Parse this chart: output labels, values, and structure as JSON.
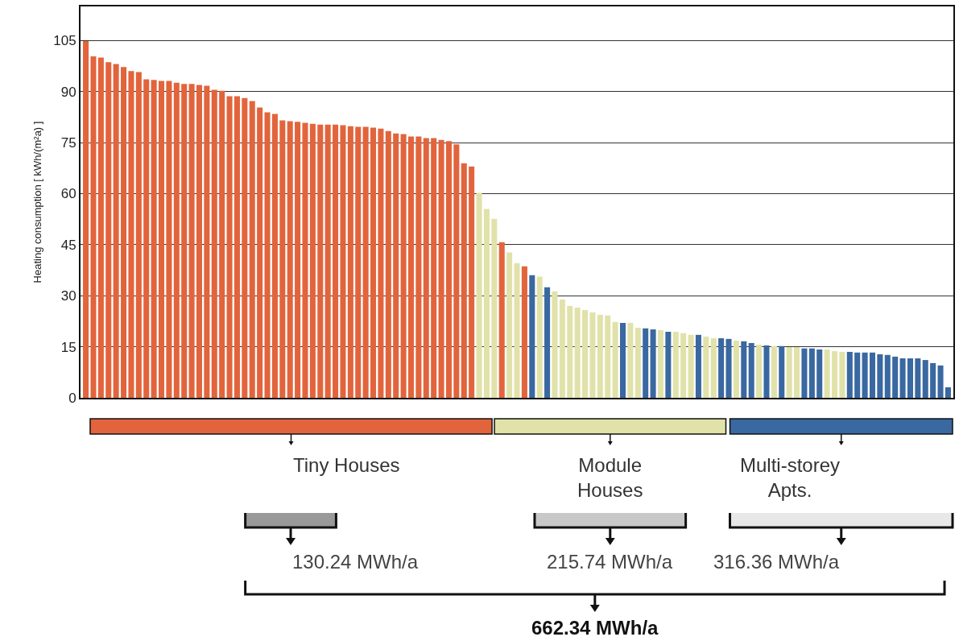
{
  "chart_data": {
    "type": "bar",
    "ylabel": "Heating consumption [ kWh/(m²a) ]",
    "categories": [
      null,
      null,
      null,
      null,
      null,
      null,
      null,
      null,
      null,
      null,
      null,
      null,
      null,
      null,
      null,
      null,
      null,
      null,
      null,
      null,
      null,
      null,
      null,
      null,
      null,
      null,
      null,
      null,
      null,
      null,
      null,
      null,
      null,
      null,
      null,
      null,
      null,
      null,
      null,
      null,
      null,
      null,
      null,
      null,
      null,
      null,
      null,
      null,
      null,
      null,
      null,
      null,
      null,
      null,
      null,
      null,
      null,
      null,
      null,
      null,
      null,
      null,
      null,
      null,
      null,
      null,
      null,
      null,
      null,
      null,
      null,
      null,
      null,
      null,
      null,
      null,
      null,
      null,
      null,
      null,
      null,
      null,
      null,
      null,
      null,
      null,
      null,
      null,
      null,
      null,
      null,
      null,
      null,
      null,
      null,
      null,
      null,
      null,
      null,
      null,
      null,
      null,
      null,
      null,
      null,
      null,
      null,
      null,
      null,
      null,
      null,
      null,
      null,
      null,
      null
    ],
    "series": [
      {
        "name": "Tiny Houses",
        "color": "#e2643c",
        "values": [
          104.8,
          100.3,
          100.0,
          98.6,
          98.1,
          97.2,
          96.0,
          95.7,
          93.6,
          93.4,
          93.1,
          93.1,
          92.6,
          92.2,
          92.2,
          91.9,
          91.7,
          90.5,
          90.2,
          88.6,
          88.6,
          88.1,
          87.2,
          85.3,
          83.9,
          83.4,
          81.5,
          81.3,
          81.1,
          80.8,
          80.5,
          80.3,
          80.3,
          80.3,
          80.1,
          79.8,
          79.6,
          79.6,
          79.4,
          79.1,
          78.4,
          77.7,
          77.5,
          76.8,
          76.8,
          76.3,
          76.3,
          75.8,
          75.4,
          74.5,
          68.9,
          68.0,
          null,
          null,
          null,
          45.7,
          null,
          null,
          38.6,
          null,
          null,
          null,
          null,
          null,
          null,
          null,
          null,
          null,
          null,
          null,
          null,
          null,
          null,
          null,
          null,
          null,
          null,
          null,
          null,
          null,
          null,
          null,
          null,
          null,
          null,
          null,
          null,
          null,
          null,
          null,
          null,
          null,
          null,
          null,
          null,
          null,
          null,
          null,
          null,
          null,
          null,
          null,
          null,
          null,
          null,
          null,
          null,
          null,
          null,
          null,
          null,
          null,
          null,
          null,
          null
        ]
      },
      {
        "name": "Module\nHouses",
        "color": "#e1e2aa",
        "values": [
          null,
          null,
          null,
          null,
          null,
          null,
          null,
          null,
          null,
          null,
          null,
          null,
          null,
          null,
          null,
          null,
          null,
          null,
          null,
          null,
          null,
          null,
          null,
          null,
          null,
          null,
          null,
          null,
          null,
          null,
          null,
          null,
          null,
          null,
          null,
          null,
          null,
          null,
          null,
          null,
          null,
          null,
          null,
          null,
          null,
          null,
          null,
          null,
          null,
          null,
          null,
          null,
          60.2,
          55.5,
          52.6,
          null,
          42.7,
          39.6,
          null,
          null,
          35.6,
          null,
          31.3,
          28.9,
          27.0,
          26.5,
          25.8,
          25.1,
          24.4,
          24.2,
          22.3,
          null,
          22.0,
          20.6,
          null,
          null,
          19.9,
          null,
          19.4,
          19.0,
          18.5,
          null,
          18.0,
          17.5,
          null,
          null,
          16.8,
          null,
          null,
          15.6,
          null,
          15.2,
          null,
          14.9,
          14.9,
          null,
          null,
          null,
          14.2,
          13.7,
          13.5,
          null,
          null,
          null,
          null,
          null,
          null,
          null,
          null,
          null,
          null,
          null,
          null,
          null,
          null
        ]
      },
      {
        "name": "Multi-storey\nApts.",
        "color": "#3a68a0",
        "values": [
          null,
          null,
          null,
          null,
          null,
          null,
          null,
          null,
          null,
          null,
          null,
          null,
          null,
          null,
          null,
          null,
          null,
          null,
          null,
          null,
          null,
          null,
          null,
          null,
          null,
          null,
          null,
          null,
          null,
          null,
          null,
          null,
          null,
          null,
          null,
          null,
          null,
          null,
          null,
          null,
          null,
          null,
          null,
          null,
          null,
          null,
          null,
          null,
          null,
          null,
          null,
          null,
          null,
          null,
          null,
          null,
          null,
          null,
          null,
          36.0,
          null,
          32.5,
          null,
          null,
          null,
          null,
          null,
          null,
          null,
          null,
          null,
          22.0,
          null,
          null,
          20.4,
          20.1,
          null,
          19.4,
          null,
          null,
          null,
          18.5,
          null,
          null,
          17.5,
          17.3,
          null,
          16.6,
          16.1,
          null,
          15.4,
          null,
          15.2,
          null,
          null,
          14.5,
          14.5,
          14.2,
          null,
          null,
          null,
          13.5,
          13.3,
          13.3,
          13.3,
          12.8,
          12.6,
          12.1,
          11.6,
          11.6,
          11.6,
          11.1,
          10.2,
          9.5,
          3.1
        ]
      }
    ],
    "ylim": [
      0,
      115
    ],
    "yticks": [
      0,
      15,
      30,
      45,
      60,
      75,
      90,
      105
    ],
    "grid": "y",
    "legend": "bottom",
    "annotations": [
      "130.24 MWh/a",
      "215.74 MWh/a",
      "316.36 MWh/a",
      "662.34 MWh/a"
    ]
  }
}
